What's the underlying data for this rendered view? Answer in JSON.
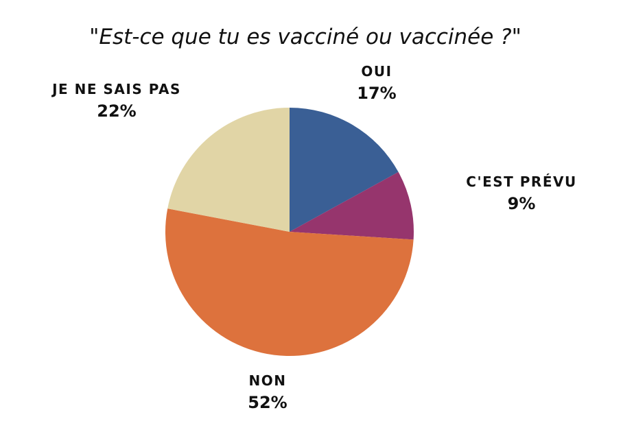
{
  "chart_data": {
    "type": "pie",
    "title": "\"Est-ce que tu es vacciné ou vaccinée ?\"",
    "slices": [
      {
        "label": "OUI",
        "value": 17,
        "value_label": "17%",
        "color": "#3a5f95"
      },
      {
        "label": "C'EST PRÉVU",
        "value": 9,
        "value_label": "9%",
        "color": "#96356d"
      },
      {
        "label": "NON",
        "value": 52,
        "value_label": "52%",
        "color": "#dd723d"
      },
      {
        "label": "JE NE SAIS PAS",
        "value": 22,
        "value_label": "22%",
        "color": "#e1d5a6"
      }
    ],
    "start_angle": "12 o'clock",
    "direction": "clockwise",
    "legend": "none"
  }
}
